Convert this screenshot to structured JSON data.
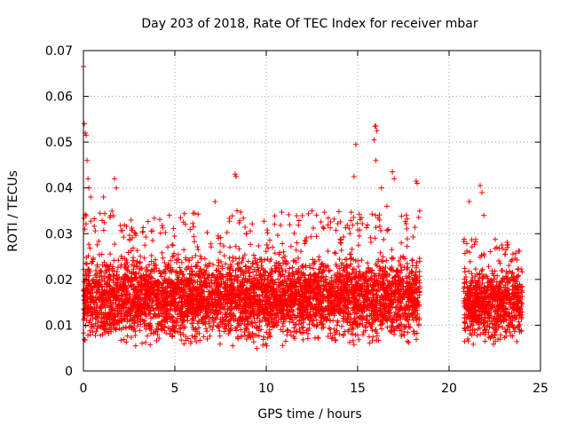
{
  "chart_data": {
    "type": "scatter",
    "title": "Day 203 of 2018, Rate Of TEC Index for receiver mbar",
    "xlabel": "GPS time / hours",
    "ylabel": "ROTI / TECUs",
    "xlim": [
      0,
      25
    ],
    "ylim": [
      0,
      0.07
    ],
    "x_ticks": [
      0,
      5,
      10,
      15,
      20,
      25
    ],
    "x_tick_labels": [
      "0",
      "5",
      "10",
      "15",
      "20",
      "25"
    ],
    "y_ticks": [
      0,
      0.01,
      0.02,
      0.03,
      0.04,
      0.05,
      0.06,
      0.07
    ],
    "y_tick_labels": [
      "0",
      "0.01",
      "0.02",
      "0.03",
      "0.04",
      "0.05",
      "0.06",
      "0.07"
    ],
    "grid": true,
    "marker": "+",
    "color": "#ff0000",
    "series": [
      {
        "name": "ROTI",
        "segments": [
          {
            "x_start": 0.0,
            "x_end": 18.4,
            "typical_min": 0.004,
            "typical_max": 0.027,
            "peak_max": 0.035
          },
          {
            "x_start": 20.8,
            "x_end": 24.0,
            "typical_min": 0.004,
            "typical_max": 0.024,
            "peak_max": 0.029
          }
        ],
        "notable_points": [
          {
            "x": 0.0,
            "y": 0.0665
          },
          {
            "x": 0.05,
            "y": 0.054
          },
          {
            "x": 0.1,
            "y": 0.052
          },
          {
            "x": 0.15,
            "y": 0.0515
          },
          {
            "x": 0.2,
            "y": 0.046
          },
          {
            "x": 0.25,
            "y": 0.042
          },
          {
            "x": 0.3,
            "y": 0.04
          },
          {
            "x": 0.4,
            "y": 0.038
          },
          {
            "x": 1.1,
            "y": 0.038
          },
          {
            "x": 1.7,
            "y": 0.042
          },
          {
            "x": 1.8,
            "y": 0.04
          },
          {
            "x": 4.7,
            "y": 0.034
          },
          {
            "x": 7.2,
            "y": 0.037
          },
          {
            "x": 8.3,
            "y": 0.043
          },
          {
            "x": 8.35,
            "y": 0.0425
          },
          {
            "x": 8.4,
            "y": 0.035
          },
          {
            "x": 12.5,
            "y": 0.035
          },
          {
            "x": 14.9,
            "y": 0.0495
          },
          {
            "x": 14.8,
            "y": 0.0425
          },
          {
            "x": 15.2,
            "y": 0.0335
          },
          {
            "x": 15.95,
            "y": 0.0535
          },
          {
            "x": 16.0,
            "y": 0.0535
          },
          {
            "x": 16.05,
            "y": 0.0525
          },
          {
            "x": 15.9,
            "y": 0.0505
          },
          {
            "x": 16.0,
            "y": 0.046
          },
          {
            "x": 16.3,
            "y": 0.04
          },
          {
            "x": 16.6,
            "y": 0.036
          },
          {
            "x": 16.9,
            "y": 0.0435
          },
          {
            "x": 17.0,
            "y": 0.042
          },
          {
            "x": 18.2,
            "y": 0.0415
          },
          {
            "x": 18.25,
            "y": 0.041
          },
          {
            "x": 21.1,
            "y": 0.037
          },
          {
            "x": 21.7,
            "y": 0.0405
          },
          {
            "x": 21.8,
            "y": 0.039
          },
          {
            "x": 21.9,
            "y": 0.034
          },
          {
            "x": 23.2,
            "y": 0.027
          }
        ]
      }
    ]
  }
}
